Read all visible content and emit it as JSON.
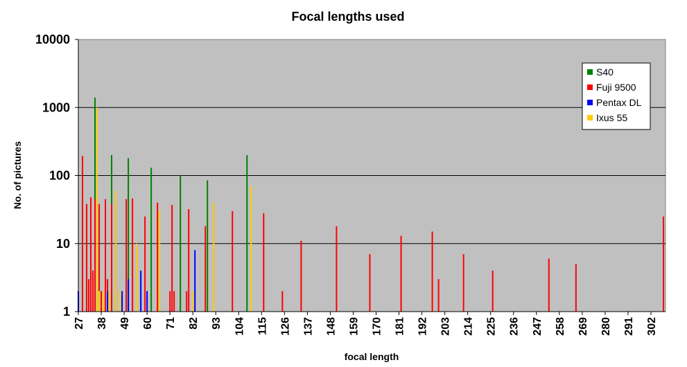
{
  "chart_data": {
    "type": "bar",
    "title": "Focal lengths used",
    "xlabel": "focal length",
    "ylabel": "No. of pictures",
    "yscale": "log",
    "ylim": [
      1,
      10000
    ],
    "yticks": [
      "1",
      "10",
      "100",
      "1000",
      "10000"
    ],
    "xlim": [
      27,
      309
    ],
    "xticks": [
      "27",
      "38",
      "49",
      "60",
      "71",
      "82",
      "93",
      "104",
      "115",
      "126",
      "137",
      "148",
      "159",
      "170",
      "181",
      "192",
      "203",
      "214",
      "225",
      "236",
      "247",
      "258",
      "269",
      "280",
      "291",
      "302"
    ],
    "grid": true,
    "legend_position": "top-right",
    "plot_background": "#c0c0c0",
    "series": [
      {
        "name": "S40",
        "color": "#008000",
        "points": [
          [
            35,
            1400
          ],
          [
            36,
            13
          ],
          [
            37,
            5
          ],
          [
            43,
            200
          ],
          [
            51,
            180
          ],
          [
            62,
            130
          ],
          [
            76,
            100
          ],
          [
            89,
            85
          ],
          [
            108,
            200
          ]
        ]
      },
      {
        "name": "Fuji 9500",
        "color": "#ff0000",
        "points": [
          [
            29,
            195
          ],
          [
            31,
            38
          ],
          [
            32,
            3
          ],
          [
            33,
            48
          ],
          [
            34,
            4
          ],
          [
            35,
            45
          ],
          [
            37,
            38
          ],
          [
            38,
            2
          ],
          [
            39,
            2
          ],
          [
            40,
            45
          ],
          [
            41,
            3
          ],
          [
            43,
            38
          ],
          [
            45,
            42
          ],
          [
            50,
            45
          ],
          [
            53,
            46
          ],
          [
            59,
            25
          ],
          [
            65,
            40
          ],
          [
            71,
            2
          ],
          [
            72,
            37
          ],
          [
            73,
            2
          ],
          [
            79,
            2
          ],
          [
            80,
            32
          ],
          [
            88,
            18
          ],
          [
            101,
            30
          ],
          [
            116,
            28
          ],
          [
            125,
            2
          ],
          [
            134,
            11
          ],
          [
            151,
            18
          ],
          [
            167,
            7
          ],
          [
            182,
            13
          ],
          [
            197,
            15
          ],
          [
            200,
            3
          ],
          [
            212,
            7
          ],
          [
            226,
            4
          ],
          [
            253,
            6
          ],
          [
            266,
            5
          ],
          [
            308,
            25
          ]
        ]
      },
      {
        "name": "Pentax DL",
        "color": "#0000ff",
        "points": [
          [
            27,
            2
          ],
          [
            41,
            2
          ],
          [
            48,
            2
          ],
          [
            51,
            3
          ],
          [
            57,
            4
          ],
          [
            60,
            2
          ],
          [
            83,
            8
          ]
        ]
      },
      {
        "name": "Ixus 55",
        "color": "#ffcc00",
        "points": [
          [
            36,
            1000
          ],
          [
            37,
            2
          ],
          [
            39,
            2
          ],
          [
            42,
            2
          ],
          [
            45,
            60
          ],
          [
            47,
            2
          ],
          [
            55,
            10
          ],
          [
            66,
            30
          ],
          [
            82,
            2
          ],
          [
            92,
            40
          ],
          [
            110,
            70
          ]
        ]
      }
    ]
  }
}
